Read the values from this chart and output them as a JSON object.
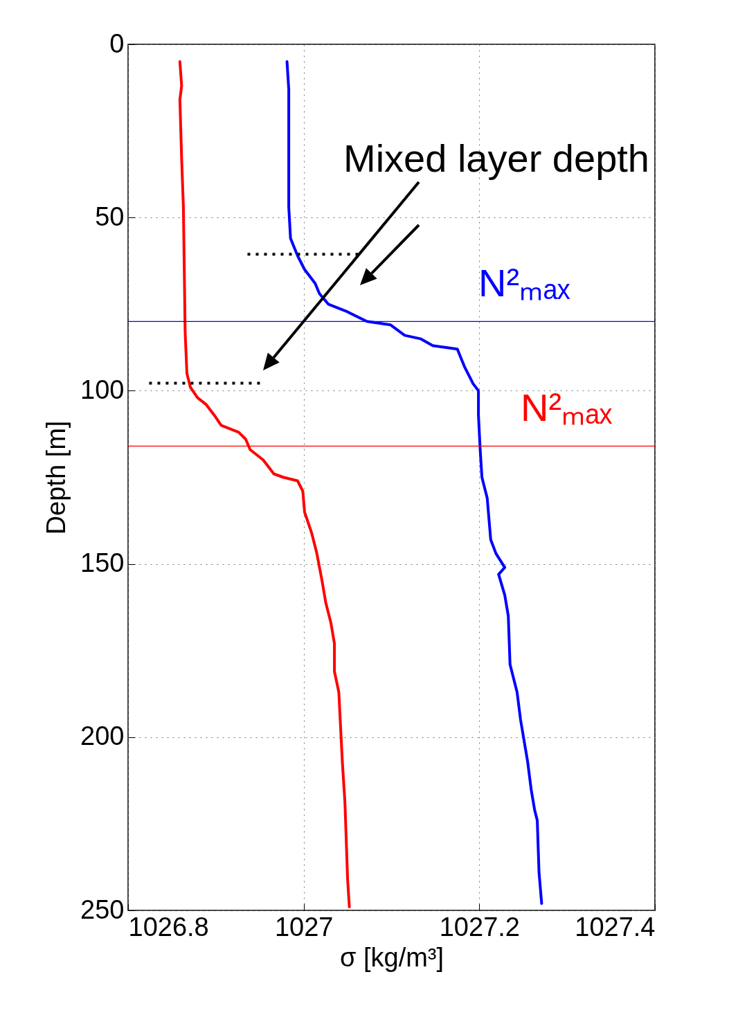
{
  "chart_data": {
    "type": "line",
    "xlabel": "σ [kg/m³]",
    "ylabel": "Depth [m]",
    "xlim": [
      1026.8,
      1027.4
    ],
    "xticks": [
      1026.8,
      1027,
      1027.2,
      1027.4
    ],
    "ylim": [
      250,
      0
    ],
    "yticks": [
      0,
      50,
      100,
      150,
      200,
      250
    ],
    "grid": true,
    "annotations": [
      "Mixed layer depth"
    ],
    "series": [
      {
        "color": "#ff0000",
        "line_style": "solid",
        "x": [
          1026.859,
          1026.861,
          1026.859,
          1026.861,
          1026.863,
          1026.865,
          1026.867,
          1026.871,
          1026.879,
          1026.889,
          1026.898,
          1026.906,
          1026.926,
          1026.934,
          1026.939,
          1026.954,
          1026.966,
          1026.977,
          1026.993,
          1026.999,
          1027.001,
          1027.009,
          1027.015,
          1027.021,
          1027.025,
          1027.031,
          1027.035,
          1027.035,
          1027.04,
          1027.044,
          1027.047,
          1027.05,
          1027.052
        ],
        "values": [
          5,
          12,
          16,
          33,
          47,
          83,
          95,
          99,
          102,
          104,
          107,
          110,
          112,
          114,
          117,
          120,
          124,
          125,
          126,
          129,
          135,
          141,
          147,
          155,
          161,
          167,
          173,
          181,
          187,
          207,
          219,
          241,
          249
        ]
      },
      {
        "color": "#0000ff",
        "line_style": "solid",
        "x": [
          1026.981,
          1026.983,
          1026.983,
          1026.983,
          1026.985,
          1026.993,
          1027.001,
          1027.013,
          1027.018,
          1027.028,
          1027.048,
          1027.072,
          1027.099,
          1027.115,
          1027.133,
          1027.147,
          1027.175,
          1027.183,
          1027.193,
          1027.199,
          1027.199,
          1027.201,
          1027.203,
          1027.209,
          1027.213,
          1027.219,
          1027.229,
          1027.222,
          1027.229,
          1027.233,
          1027.235,
          1027.243,
          1027.247,
          1027.251,
          1027.255,
          1027.259,
          1027.263,
          1027.266,
          1027.268,
          1027.271
        ],
        "values": [
          5,
          13,
          27,
          47,
          56,
          61,
          65,
          69,
          72,
          75,
          77,
          80,
          81,
          84,
          85,
          87,
          88,
          93,
          98,
          100,
          107,
          117,
          125,
          131,
          143,
          147,
          151,
          153,
          159,
          165,
          179,
          187,
          195,
          201,
          207,
          215,
          221,
          224,
          239,
          248
        ]
      },
      {
        "color": "#000000",
        "line_style": "dotted",
        "x": [
          1026.936,
          1027.066
        ],
        "values": [
          60.6,
          60.6
        ]
      },
      {
        "color": "#000000",
        "line_style": "dotted",
        "x": [
          1026.824,
          1026.954
        ],
        "values": [
          97.8,
          97.8
        ]
      }
    ],
    "ref_lines": [
      {
        "axis": "y",
        "value": 80,
        "label": "N²ₘₐₓ",
        "color": "#0000ff"
      },
      {
        "axis": "y",
        "value": 116,
        "label": "N²ₘₐₓ",
        "color": "#ff0000"
      }
    ]
  }
}
